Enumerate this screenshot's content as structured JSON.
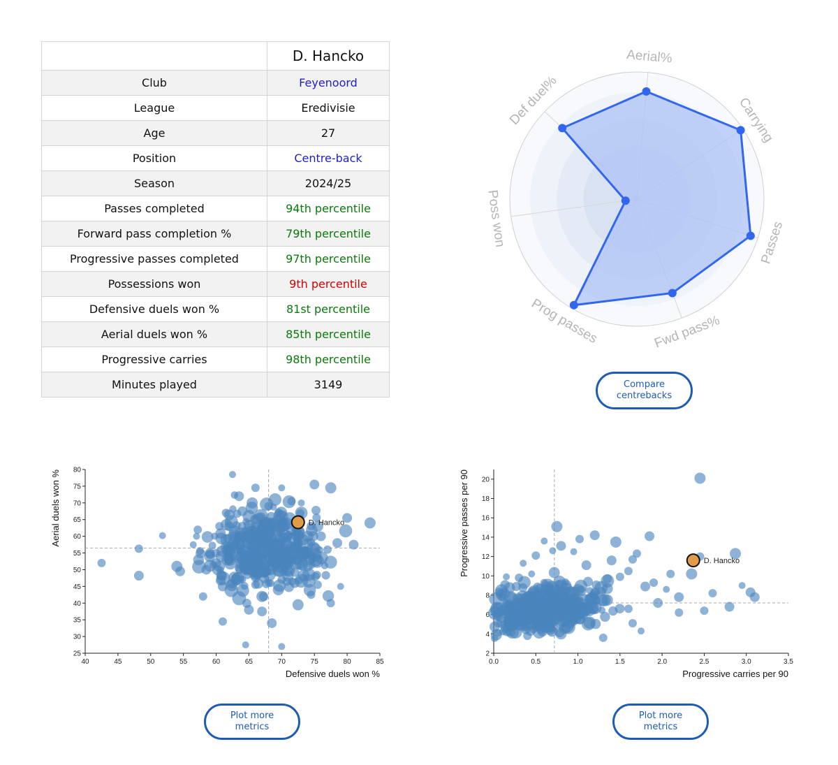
{
  "player_table": {
    "header": "D. Hancko",
    "rows": [
      {
        "label": "Club",
        "value": "Feyenoord",
        "color": "#1f1fc9"
      },
      {
        "label": "League",
        "value": "Eredivisie",
        "color": "#111111"
      },
      {
        "label": "Age",
        "value": "27",
        "color": "#111111"
      },
      {
        "label": "Position",
        "value": "Centre-back",
        "color": "#1f1fc9"
      },
      {
        "label": "Season",
        "value": "2024/25",
        "color": "#111111"
      },
      {
        "label": "Passes completed",
        "value": "94th percentile",
        "color": "#0a7a0a"
      },
      {
        "label": "Forward pass completion %",
        "value": "79th percentile",
        "color": "#0a7a0a"
      },
      {
        "label": "Progressive passes completed",
        "value": "97th percentile",
        "color": "#0a7a0a"
      },
      {
        "label": "Possessions won",
        "value": "9th percentile",
        "color": "#d40000"
      },
      {
        "label": "Defensive duels won %",
        "value": "81st percentile",
        "color": "#0a7a0a"
      },
      {
        "label": "Aerial duels won %",
        "value": "85th percentile",
        "color": "#0a7a0a"
      },
      {
        "label": "Progressive carries",
        "value": "98th percentile",
        "color": "#0a7a0a"
      },
      {
        "label": "Minutes played",
        "value": "3149",
        "color": "#111111"
      }
    ]
  },
  "buttons": {
    "compare": "Compare centrebacks",
    "plot_more_left": "Plot more metrics",
    "plot_more_right": "Plot more metrics"
  },
  "colors": {
    "accent": "#1d5bb4",
    "radar_line": "#3366ee",
    "radar_fill": "#a9c1f5",
    "scatter_point": "#4a84bd",
    "highlight_point": "#e09a48"
  },
  "chart_data": [
    {
      "type": "radar",
      "axes": [
        "Aerial%",
        "Carrying",
        "Passes",
        "Fwd pass%",
        "Prog passes",
        "Poss won",
        "Def duel%"
      ],
      "values": [
        85,
        98,
        94,
        79,
        97,
        9,
        81
      ],
      "range": [
        0,
        100
      ]
    },
    {
      "type": "scatter",
      "xlabel": "Defensive duels won %",
      "ylabel": "Aerial duels won %",
      "xlim": [
        40,
        85
      ],
      "ylim": [
        25,
        80
      ],
      "xticks": [
        40,
        45,
        50,
        55,
        60,
        65,
        70,
        75,
        80,
        85
      ],
      "yticks": [
        25,
        30,
        35,
        40,
        45,
        50,
        55,
        60,
        65,
        70,
        75,
        80
      ],
      "reference_lines": {
        "x": 68,
        "y": 56.5
      },
      "highlight": {
        "name": "D. Hancko",
        "x": 72.5,
        "y": 64.2
      },
      "points": [
        [
          42.5,
          52,
          6
        ],
        [
          48.2,
          56.3,
          6
        ],
        [
          48.2,
          48.2,
          7
        ],
        [
          51.8,
          60.2,
          5
        ],
        [
          54,
          51,
          8
        ],
        [
          54.5,
          49.5,
          7
        ],
        [
          56.5,
          57.5,
          5
        ],
        [
          57,
          60,
          5
        ],
        [
          58,
          42,
          6
        ],
        [
          58.5,
          50,
          7
        ],
        [
          59,
          54,
          8
        ],
        [
          60,
          55,
          6
        ],
        [
          60.5,
          63,
          6
        ],
        [
          61,
          45,
          7
        ],
        [
          61,
          34.5,
          6
        ],
        [
          62.5,
          78.5,
          5
        ],
        [
          63,
          47,
          8
        ],
        [
          63,
          57,
          9
        ],
        [
          64,
          60,
          9
        ],
        [
          64,
          52,
          10
        ],
        [
          64.5,
          27.5,
          5
        ],
        [
          65,
          38,
          7
        ],
        [
          65,
          66,
          9
        ],
        [
          65.5,
          70,
          8
        ],
        [
          66,
          74.5,
          6
        ],
        [
          66,
          49,
          10
        ],
        [
          66.5,
          59,
          12
        ],
        [
          67,
          56,
          13
        ],
        [
          67,
          42,
          8
        ],
        [
          67.5,
          63,
          10
        ],
        [
          68,
          53,
          11
        ],
        [
          68,
          69,
          6
        ],
        [
          68.5,
          34,
          7
        ],
        [
          69,
          60,
          10
        ],
        [
          69.5,
          44,
          8
        ],
        [
          70,
          74.5,
          5
        ],
        [
          70,
          27,
          5
        ],
        [
          70.5,
          57,
          11
        ],
        [
          71,
          50,
          10
        ],
        [
          71.5,
          62,
          8
        ],
        [
          72,
          46,
          7
        ],
        [
          72.5,
          39.5,
          8
        ],
        [
          73,
          67,
          9
        ],
        [
          73.5,
          55,
          9
        ],
        [
          74,
          51,
          7
        ],
        [
          74.5,
          42.5,
          6
        ],
        [
          75,
          75.5,
          7
        ],
        [
          75.5,
          63,
          8
        ],
        [
          76,
          60,
          7
        ],
        [
          77,
          56,
          6
        ],
        [
          77.5,
          74.5,
          8
        ],
        [
          77.5,
          40,
          6
        ],
        [
          78.5,
          58,
          7
        ],
        [
          79,
          45,
          5
        ],
        [
          80,
          65.5,
          7
        ],
        [
          81,
          57.5,
          7
        ],
        [
          83.5,
          64,
          8
        ],
        [
          62,
          63,
          7
        ],
        [
          61.5,
          67,
          6
        ],
        [
          63.5,
          72,
          7
        ],
        [
          66,
          45.5,
          6
        ],
        [
          67,
          37.5,
          7
        ],
        [
          70,
          47,
          6
        ],
        [
          72.5,
          52,
          9
        ],
        [
          74,
          60,
          8
        ],
        [
          75.5,
          45.5,
          6
        ],
        [
          69,
          71,
          9
        ],
        [
          71.5,
          70.5,
          6
        ],
        [
          64,
          67.5,
          7
        ],
        [
          62.5,
          54,
          6
        ],
        [
          60.5,
          51,
          8
        ],
        [
          73,
          70,
          5
        ]
      ],
      "cloud": {
        "center": [
          67.5,
          56
        ],
        "spread": [
          4.2,
          5.6
        ],
        "count": 380
      }
    },
    {
      "type": "scatter",
      "xlabel": "Progressive carries per 90",
      "ylabel": "Progressive passes per 90",
      "xlim": [
        0,
        3.5
      ],
      "ylim": [
        2,
        21
      ],
      "xticks": [
        0.0,
        0.5,
        1.0,
        1.5,
        2.0,
        2.5,
        3.0,
        3.5
      ],
      "yticks": [
        2,
        4,
        6,
        8,
        10,
        12,
        14,
        16,
        18,
        20
      ],
      "reference_lines": {
        "x": 0.72,
        "y": 7.2
      },
      "highlight": {
        "name": "D. Hancko",
        "x": 2.37,
        "y": 11.6
      },
      "points": [
        [
          2.45,
          20.1,
          8
        ],
        [
          2.87,
          12.3,
          8
        ],
        [
          3.05,
          8.3,
          7
        ],
        [
          3.1,
          7.8,
          7
        ],
        [
          2.8,
          6.8,
          7
        ],
        [
          2.6,
          8.2,
          6
        ],
        [
          2.45,
          12.0,
          6
        ],
        [
          2.35,
          10.2,
          8
        ],
        [
          2.2,
          7.8,
          7
        ],
        [
          2.2,
          6.2,
          6
        ],
        [
          1.85,
          14.1,
          7
        ],
        [
          1.8,
          8.9,
          7
        ],
        [
          1.7,
          12.3,
          6
        ],
        [
          1.65,
          11.7,
          6
        ],
        [
          1.6,
          10.5,
          6
        ],
        [
          1.45,
          13.5,
          8
        ],
        [
          1.4,
          11.6,
          7
        ],
        [
          1.2,
          14.2,
          7
        ],
        [
          1.1,
          11.1,
          7
        ],
        [
          1.3,
          3.6,
          6
        ],
        [
          1.9,
          9.3,
          6
        ],
        [
          1.95,
          7.2,
          7
        ],
        [
          2.05,
          8.6,
          5
        ],
        [
          2.1,
          10.2,
          6
        ],
        [
          1.5,
          9.9,
          6
        ],
        [
          0.95,
          12.5,
          5
        ],
        [
          0.8,
          13.1,
          7
        ],
        [
          0.7,
          12.6,
          5
        ],
        [
          0.6,
          13.6,
          5
        ],
        [
          0.5,
          12.1,
          6
        ],
        [
          0.45,
          10.2,
          5
        ],
        [
          0.3,
          9.8,
          6
        ],
        [
          0.15,
          9.9,
          5
        ],
        [
          0.1,
          6.4,
          7
        ],
        [
          0.05,
          5.1,
          6
        ],
        [
          0.2,
          4.2,
          7
        ],
        [
          0.4,
          3.8,
          6
        ],
        [
          0.8,
          4.0,
          8
        ],
        [
          1.65,
          5.1,
          6
        ],
        [
          1.75,
          4.3,
          5
        ],
        [
          0.75,
          15.1,
          8
        ],
        [
          1.02,
          13.8,
          6
        ],
        [
          2.5,
          6.4,
          6
        ],
        [
          2.95,
          9.0,
          5
        ],
        [
          1.35,
          7.5,
          8
        ],
        [
          0.55,
          8.7,
          7
        ],
        [
          0.35,
          11.3,
          5
        ],
        [
          1.6,
          6.6,
          6
        ],
        [
          1.12,
          9.4,
          7
        ],
        [
          0.9,
          5.2,
          9
        ],
        [
          0.62,
          4.6,
          7
        ],
        [
          0.28,
          7.1,
          9
        ]
      ],
      "cloud": {
        "center": [
          0.6,
          6.6
        ],
        "spread": [
          0.32,
          1.2
        ],
        "count": 380
      }
    }
  ]
}
